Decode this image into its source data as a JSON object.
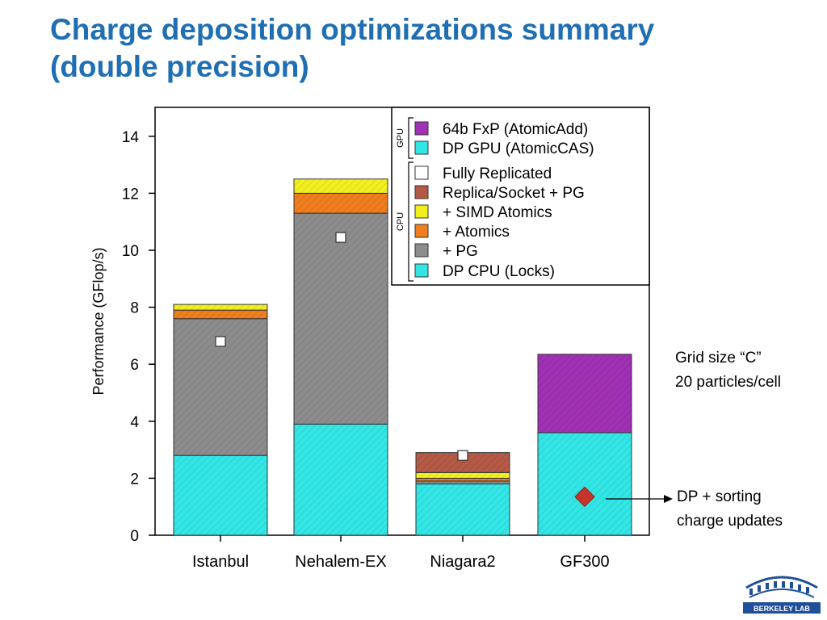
{
  "slide": {
    "title_line1": "Charge deposition optimizations summary",
    "title_line2": "(double precision)",
    "note_grid_line1": "Grid size “C”",
    "note_grid_line2": "20 particles/cell",
    "note_sort_line1": "DP + sorting",
    "note_sort_line2": "charge updates",
    "logo_text": "BERKELEY LAB"
  },
  "chart_data": {
    "type": "bar",
    "stacked": true,
    "title": "",
    "xlabel": "",
    "ylabel": "Performance (GFlop/s)",
    "ylim": [
      0,
      15
    ],
    "yticks": [
      0,
      2,
      4,
      6,
      8,
      10,
      12,
      14
    ],
    "categories": [
      "Istanbul",
      "Nehalem-EX",
      "Niagara2",
      "GF300"
    ],
    "legend_position": "top-right",
    "legend_groups": [
      {
        "label": "GPU",
        "series": [
          "64b FxP (AtomicAdd)",
          "DP GPU (AtomicCAS)"
        ]
      },
      {
        "label": "CPU",
        "series": [
          "Fully Replicated",
          "Replica/Socket + PG",
          "+ SIMD Atomics",
          "+ Atomics",
          "+ PG",
          "DP CPU (Locks)"
        ]
      }
    ],
    "series": [
      {
        "name": "DP CPU (Locks)",
        "color": "#33e6e6",
        "values": [
          2.8,
          3.9,
          1.8,
          null
        ]
      },
      {
        "name": "+ PG",
        "color": "#8c8c8c",
        "values": [
          4.8,
          7.4,
          0.1,
          null
        ]
      },
      {
        "name": "+ Atomics",
        "color": "#f07d1e",
        "values": [
          0.3,
          0.7,
          0.1,
          null
        ]
      },
      {
        "name": "+ SIMD Atomics",
        "color": "#f0f020",
        "values": [
          0.2,
          0.5,
          0.2,
          null
        ]
      },
      {
        "name": "Replica/Socket + PG",
        "color": "#b45a46",
        "values": [
          null,
          null,
          0.7,
          null
        ]
      },
      {
        "name": "DP GPU (AtomicCAS)",
        "color": "#33e6e6",
        "values": [
          null,
          null,
          null,
          3.6
        ]
      },
      {
        "name": "64b FxP (AtomicAdd)",
        "color": "#a030b4",
        "values": [
          null,
          null,
          null,
          2.75
        ]
      }
    ],
    "markers": [
      {
        "series": "Fully Replicated",
        "shape": "square",
        "color": "#ffffff",
        "values": [
          6.8,
          10.45,
          2.8,
          null
        ]
      },
      {
        "series": "DP + sorting charge updates",
        "shape": "diamond",
        "color": "#c8342a",
        "values": [
          null,
          null,
          null,
          1.35
        ]
      }
    ]
  }
}
